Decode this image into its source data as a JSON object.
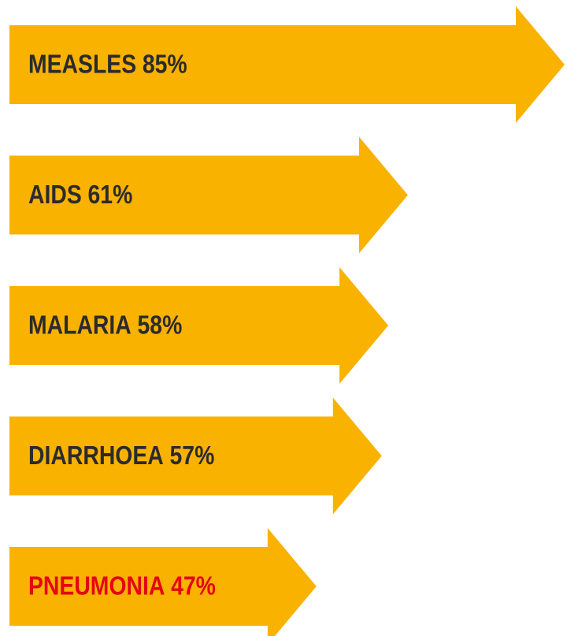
{
  "chart_data": {
    "type": "arrow-bar",
    "categories": [
      "MEASLES",
      "AIDS",
      "MALARIA",
      "DIARRHOEA",
      "PNEUMONIA"
    ],
    "values": [
      85,
      61,
      58,
      57,
      47
    ],
    "value_labels": [
      "85%",
      "61%",
      "58%",
      "57%",
      "47%"
    ],
    "color": "#f9b200",
    "label_colors": [
      "#2b2b2b",
      "#2b2b2b",
      "#2b2b2b",
      "#2b2b2b",
      "#e30613"
    ]
  }
}
